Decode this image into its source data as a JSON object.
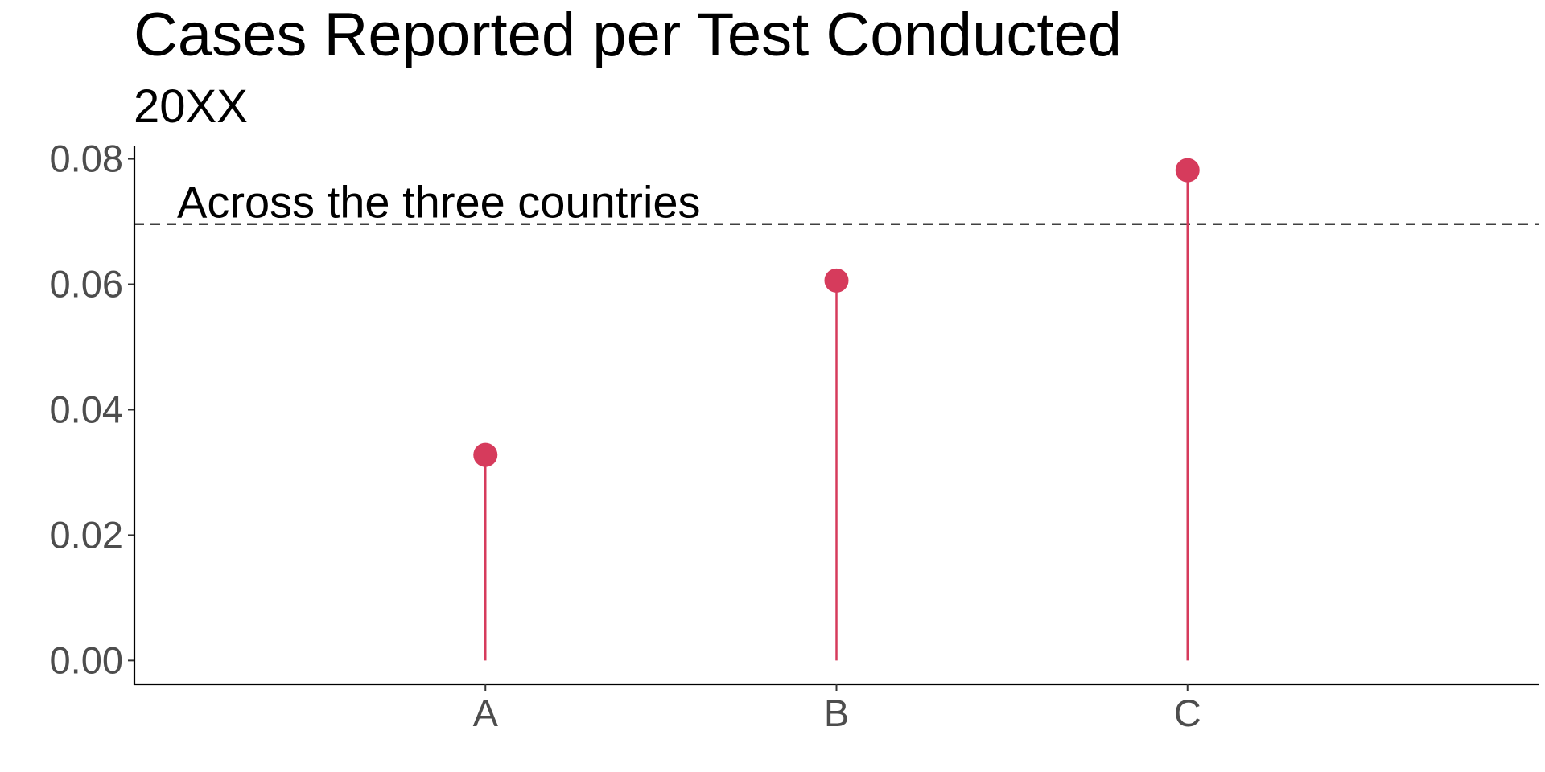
{
  "chart_data": {
    "type": "lollipop",
    "title": "Cases Reported per Test Conducted",
    "subtitle": "20XX",
    "categories": [
      "A",
      "B",
      "C"
    ],
    "values": [
      0.0328,
      0.0606,
      0.0782
    ],
    "ylim": [
      -0.0038,
      0.082
    ],
    "yticks": [
      0.0,
      0.02,
      0.04,
      0.06,
      0.08
    ],
    "ytick_labels": [
      "0.00",
      "0.02",
      "0.04",
      "0.06",
      "0.08"
    ],
    "reference_line": {
      "value": 0.0696,
      "label": "Across the three countries",
      "style": "dashed"
    },
    "grid": false,
    "colors": {
      "marker": "#d63b5c",
      "reference": "#000000"
    }
  }
}
